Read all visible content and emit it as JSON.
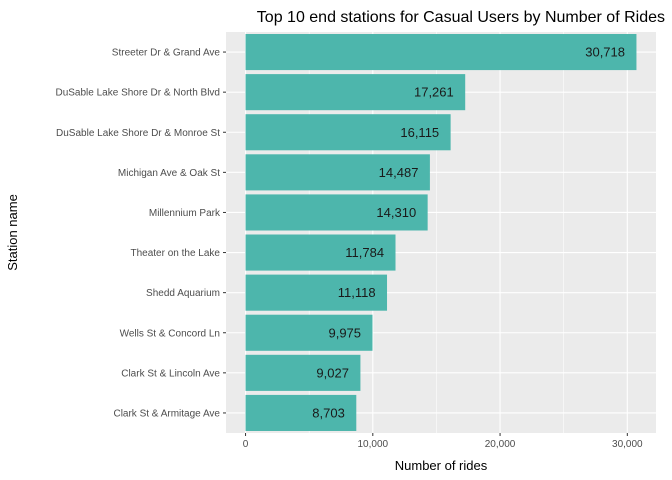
{
  "chart_data": {
    "type": "bar",
    "orientation": "horizontal",
    "title": "Top 10 end stations for Casual Users by Number of Rides",
    "xlabel": "Number of rides",
    "ylabel": "Station name",
    "categories": [
      "Streeter Dr & Grand Ave",
      "DuSable Lake Shore Dr & North Blvd",
      "DuSable Lake Shore Dr & Monroe St",
      "Michigan Ave & Oak St",
      "Millennium Park",
      "Theater on the Lake",
      "Shedd Aquarium",
      "Wells St & Concord Ln",
      "Clark St & Lincoln Ave",
      "Clark St & Armitage Ave"
    ],
    "values": [
      30718,
      17261,
      16115,
      14487,
      14310,
      11784,
      11118,
      9975,
      9027,
      8703
    ],
    "value_labels": [
      "30,718",
      "17,261",
      "16,115",
      "14,487",
      "14,310",
      "11,784",
      "11,118",
      "9,975",
      "9,027",
      "8,703"
    ],
    "x_ticks": [
      0,
      10000,
      20000,
      30000
    ],
    "x_tick_labels": [
      "0",
      "10,000",
      "20,000",
      "30,000"
    ],
    "xlim": [
      -1536,
      32254
    ],
    "grid": true,
    "bar_color": "#4db6ac",
    "panel_background": "#ebebeb",
    "grid_color": "#ffffff"
  }
}
